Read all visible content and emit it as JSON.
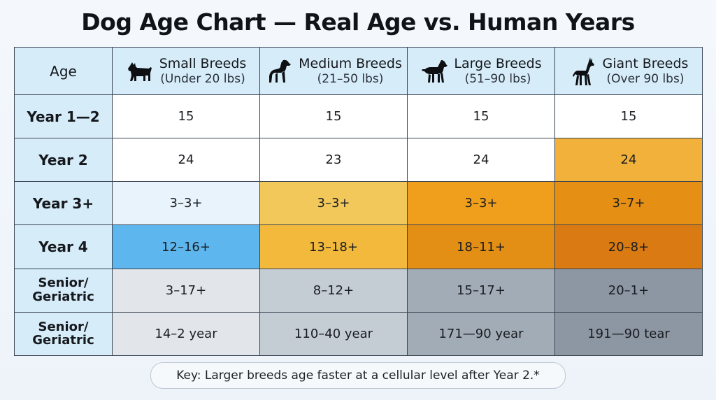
{
  "title": "Dog Age Chart — Real Age vs. Human Years",
  "table": {
    "age_header": "Age",
    "breeds": [
      {
        "name": "Small Breeds",
        "range": "(Under 20 lbs)",
        "icon": "small-dog-icon"
      },
      {
        "name": "Medium Breeds",
        "range": "(21–50 lbs)",
        "icon": "medium-dog-icon"
      },
      {
        "name": "Large Breeds",
        "range": "(51–90 lbs)",
        "icon": "large-dog-icon"
      },
      {
        "name": "Giant Breeds",
        "range": "(Over 90 lbs)",
        "icon": "giant-dog-icon"
      }
    ],
    "rows": [
      {
        "label": "Year 1—2",
        "values": [
          "15",
          "15",
          "15",
          "15"
        ],
        "colors": [
          "#ffffff",
          "#ffffff",
          "#ffffff",
          "#ffffff"
        ]
      },
      {
        "label": "Year 2",
        "values": [
          "24",
          "23",
          "24",
          "24"
        ],
        "colors": [
          "#ffffff",
          "#ffffff",
          "#ffffff",
          "#f2b13a"
        ]
      },
      {
        "label": "Year 3+",
        "values": [
          "3–3+",
          "3–3+",
          "3–3+",
          "3–7+"
        ],
        "colors": [
          "#e8f3fb",
          "#f3c85a",
          "#ef9f1c",
          "#e58f15"
        ]
      },
      {
        "label": "Year 4",
        "values": [
          "12–16+",
          "13–18+",
          "18–11+",
          "20–8+"
        ],
        "colors": [
          "#5db7ee",
          "#f2b93c",
          "#e38f16",
          "#d97a12"
        ]
      },
      {
        "label": "Senior/\nGeriatric",
        "values": [
          "3–17+",
          "8–12+",
          "15–17+",
          "20–1+"
        ],
        "colors": [
          "#e2e6ea",
          "#c4ccd4",
          "#a2acb7",
          "#8c97a3"
        ]
      },
      {
        "label": "Senior/\nGeriatric",
        "values": [
          "14–2 year",
          "110–40 year",
          "171—90 year",
          "191—90 tear"
        ],
        "colors": [
          "#e2e6ea",
          "#c4ccd4",
          "#a2acb7",
          "#8c97a3"
        ]
      }
    ]
  },
  "key_note": "Key: Larger breeds age faster at a cellular level after Year 2.*",
  "chart_data": {
    "type": "table",
    "title": "Dog Age Chart — Real Age vs. Human Years",
    "columns": [
      "Age",
      "Small Breeds (Under 20 lbs)",
      "Medium Breeds (21–50 lbs)",
      "Large Breeds (51–90 lbs)",
      "Giant Breeds (Over 90 lbs)"
    ],
    "rows": [
      [
        "Year 1—2",
        "15",
        "15",
        "15",
        "15"
      ],
      [
        "Year 2",
        "24",
        "23",
        "24",
        "24"
      ],
      [
        "Year 3+",
        "3–3+",
        "3–3+",
        "3–3+",
        "3–7+"
      ],
      [
        "Year 4",
        "12–16+",
        "13–18+",
        "18–11+",
        "20–8+"
      ],
      [
        "Senior/ Geriatric",
        "3–17+",
        "8–12+",
        "15–17+",
        "20–1+"
      ],
      [
        "Senior/ Geriatric",
        "14–2 year",
        "110–40 year",
        "171—90 year",
        "191—90 tear"
      ]
    ]
  }
}
